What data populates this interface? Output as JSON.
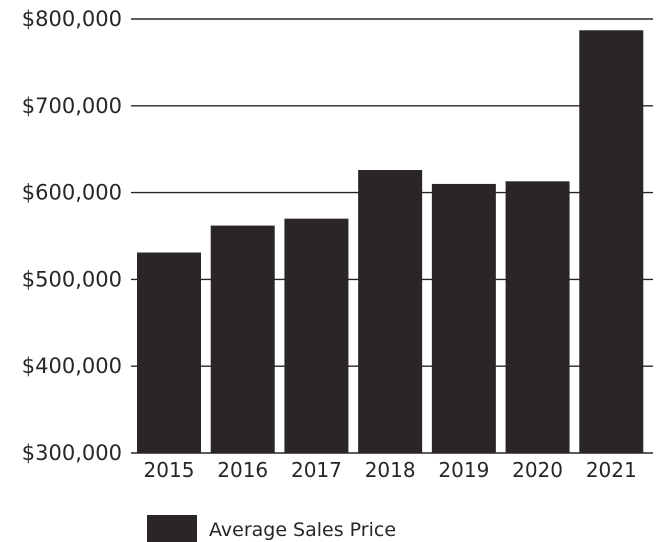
{
  "chart_data": {
    "type": "bar",
    "categories": [
      "2015",
      "2016",
      "2017",
      "2018",
      "2019",
      "2020",
      "2021"
    ],
    "series": [
      {
        "name": "Average Sales Price",
        "values": [
          531000,
          562000,
          570000,
          626000,
          610000,
          613000,
          787000
        ]
      }
    ],
    "yticks": [
      {
        "value": 300000,
        "label": "$300,000"
      },
      {
        "value": 400000,
        "label": "$400,000"
      },
      {
        "value": 500000,
        "label": "$500,000"
      },
      {
        "value": 600000,
        "label": "$600,000"
      },
      {
        "value": 700000,
        "label": "$700,000"
      },
      {
        "value": 800000,
        "label": "$800,000"
      }
    ],
    "ylim": [
      300000,
      800000
    ],
    "grid": true,
    "legend_position": "bottom-center",
    "colors": {
      "bar": "#2a2526",
      "grid": "#2a2526",
      "text": "#2a2526"
    }
  }
}
